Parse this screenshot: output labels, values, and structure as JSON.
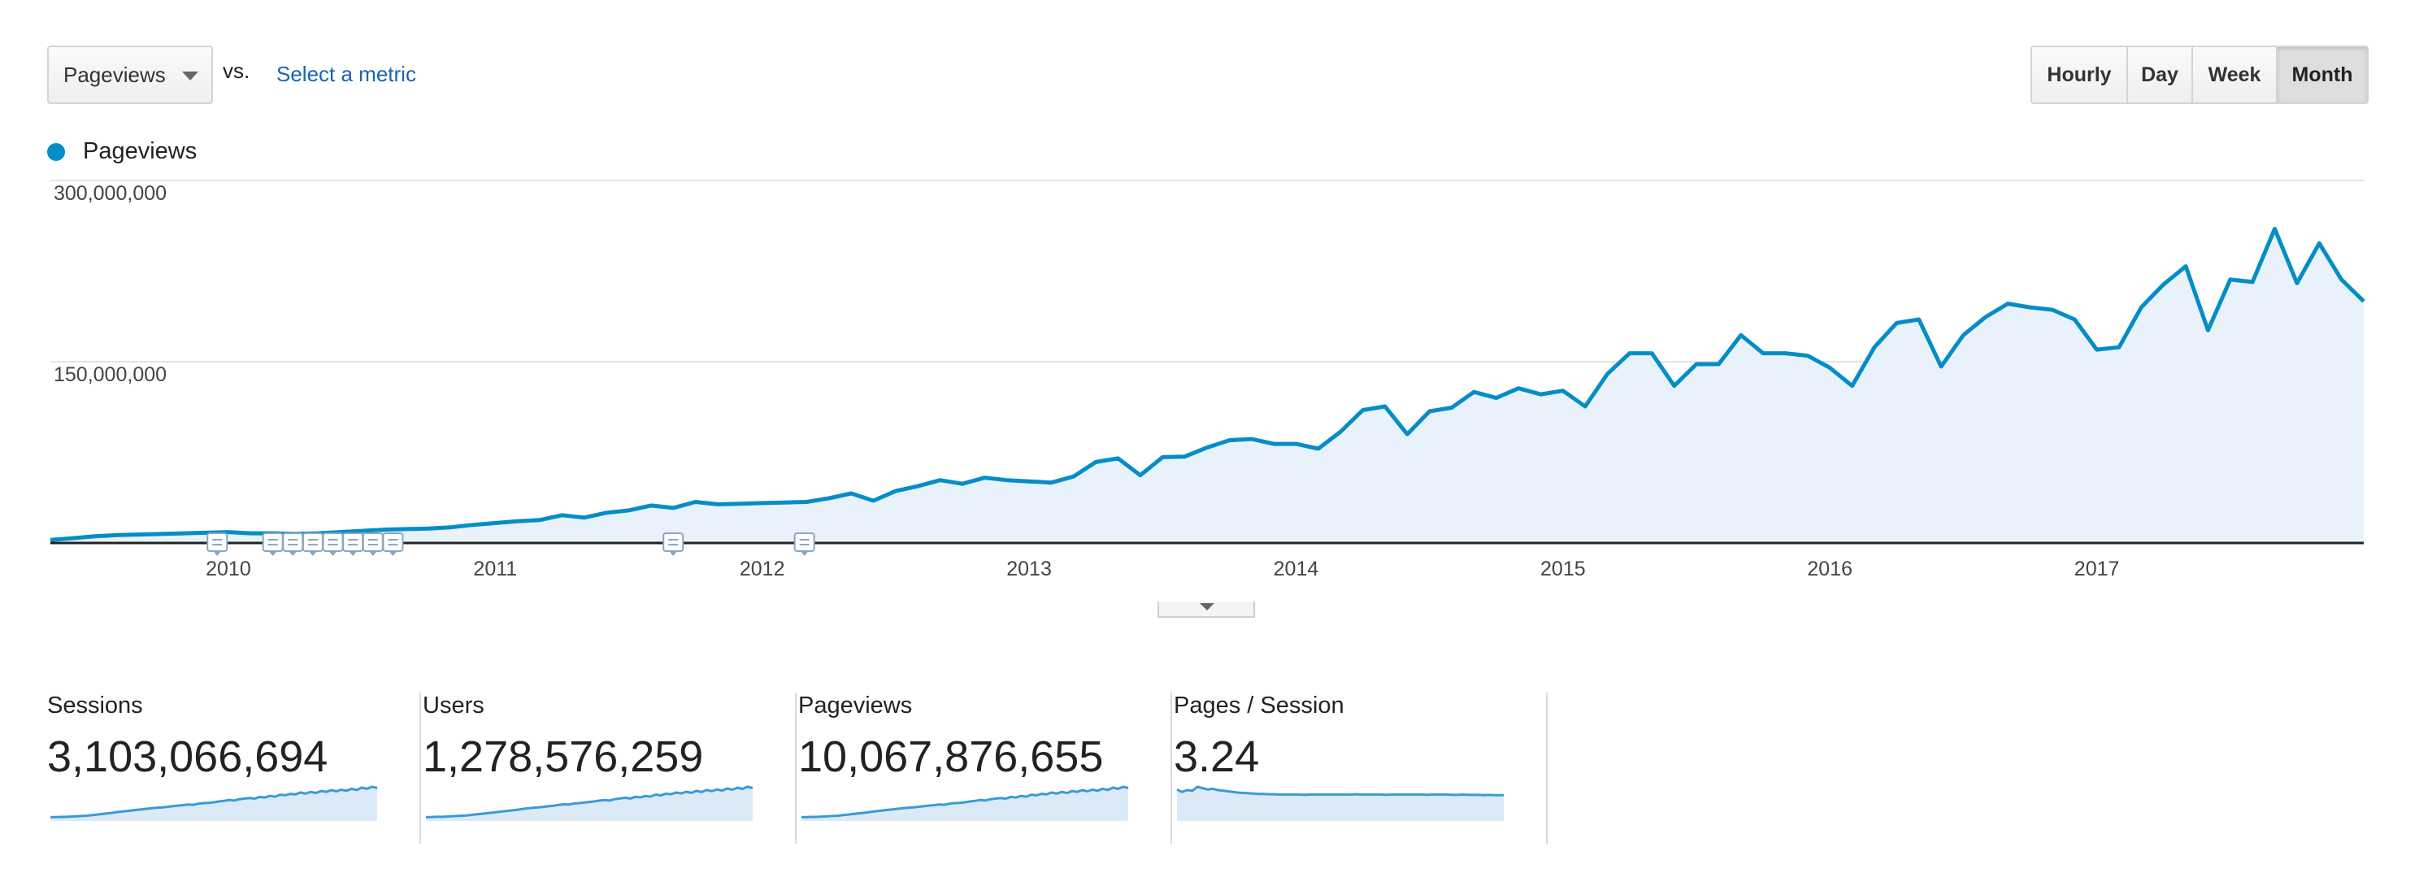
{
  "controls": {
    "metric_select": "Pageviews",
    "vs_label": "vs.",
    "select_metric_link": "Select a metric",
    "range_buttons": [
      {
        "label": "Hourly",
        "active": false
      },
      {
        "label": "Day",
        "active": false
      },
      {
        "label": "Week",
        "active": false
      },
      {
        "label": "Month",
        "active": true
      }
    ]
  },
  "legend": {
    "label": "Pageviews",
    "color": "#058dc7"
  },
  "chart_data": {
    "type": "area",
    "series": [
      {
        "name": "Pageviews",
        "color": "#058dc7"
      }
    ],
    "x_tick_labels": [
      "2010",
      "2011",
      "2012",
      "2013",
      "2014",
      "2015",
      "2016",
      "2017"
    ],
    "y_tick_labels": [
      "300,000,000",
      "150,000,000"
    ],
    "ylim": [
      0,
      300000000
    ],
    "grid": true,
    "values": [
      2500000,
      4000000,
      5500000,
      6500000,
      7000000,
      7500000,
      8000000,
      8500000,
      9000000,
      8000000,
      8000000,
      7500000,
      8000000,
      9000000,
      10000000,
      11000000,
      11500000,
      12000000,
      13000000,
      15000000,
      16500000,
      18000000,
      19000000,
      23000000,
      21000000,
      25000000,
      27000000,
      31000000,
      29000000,
      34000000,
      32000000,
      32500000,
      33000000,
      33500000,
      34000000,
      37000000,
      41000000,
      35000000,
      43000000,
      47000000,
      52000000,
      49000000,
      54000000,
      52000000,
      51000000,
      50000000,
      55000000,
      67000000,
      70000000,
      56000000,
      71000000,
      71500000,
      79000000,
      85000000,
      86000000,
      82000000,
      82000000,
      78000000,
      92000000,
      110000000,
      113000000,
      90000000,
      109000000,
      112000000,
      125000000,
      120000000,
      128000000,
      123000000,
      126000000,
      113000000,
      140000000,
      157000000,
      157000000,
      130000000,
      148000000,
      148000000,
      172000000,
      157000000,
      157000000,
      155000000,
      145000000,
      130000000,
      162000000,
      182000000,
      185000000,
      146000000,
      172000000,
      187000000,
      198000000,
      195000000,
      193000000,
      185000000,
      160000000,
      162000000,
      195000000,
      214000000,
      229000000,
      176000000,
      218000000,
      216000000,
      260000000,
      215000000,
      248000000,
      218000000,
      200000000
    ],
    "annotation_count": 10
  },
  "scorecards": [
    {
      "label": "Sessions",
      "value": "3,103,066,694",
      "spark": [
        2,
        2,
        3,
        3,
        4,
        5,
        6,
        7,
        9,
        11,
        13,
        15,
        17,
        20,
        22,
        24,
        26,
        28,
        30,
        32,
        34,
        36,
        37,
        39,
        41,
        43,
        45,
        47,
        46,
        50,
        52,
        53,
        55,
        58,
        60,
        63,
        61,
        66,
        68,
        70,
        68,
        74,
        72,
        78,
        75,
        82,
        80,
        85,
        83,
        90,
        86,
        92,
        88,
        95,
        92,
        98,
        94,
        100,
        96,
        103,
        99,
        107,
        103,
        110,
        106
      ]
    },
    {
      "label": "Users",
      "value": "1,278,576,259",
      "spark": [
        2,
        2,
        3,
        3,
        4,
        5,
        6,
        7,
        8,
        10,
        12,
        14,
        16,
        18,
        20,
        22,
        24,
        26,
        28,
        31,
        33,
        35,
        36,
        38,
        40,
        42,
        45,
        47,
        46,
        50,
        51,
        53,
        55,
        57,
        60,
        62,
        60,
        65,
        67,
        70,
        67,
        73,
        71,
        76,
        74,
        81,
        78,
        84,
        82,
        88,
        85,
        91,
        87,
        94,
        90,
        97,
        93,
        99,
        95,
        102,
        98,
        105,
        101,
        108,
        104
      ]
    },
    {
      "label": "Pageviews",
      "value": "10,067,876,655",
      "spark": [
        2,
        2,
        3,
        3,
        4,
        5,
        6,
        7,
        9,
        11,
        13,
        15,
        17,
        19,
        22,
        24,
        26,
        28,
        30,
        32,
        34,
        36,
        37,
        39,
        41,
        43,
        45,
        47,
        46,
        50,
        52,
        53,
        55,
        58,
        60,
        63,
        61,
        66,
        68,
        70,
        68,
        74,
        72,
        78,
        75,
        82,
        80,
        85,
        83,
        90,
        86,
        92,
        88,
        95,
        92,
        98,
        94,
        100,
        96,
        103,
        99,
        107,
        103,
        110,
        106
      ]
    },
    {
      "label": "Pages / Session",
      "value": "3.24",
      "spark": [
        88,
        80,
        86,
        84,
        96,
        92,
        88,
        90,
        86,
        84,
        82,
        80,
        78,
        77,
        76,
        75,
        74,
        74,
        73,
        73,
        72,
        72,
        72,
        72,
        72,
        71,
        72,
        72,
        72,
        72,
        72,
        72,
        72,
        72,
        72,
        73,
        72,
        72,
        72,
        72,
        72,
        71,
        72,
        72,
        72,
        72,
        72,
        72,
        72,
        71,
        72,
        72,
        72,
        72,
        71,
        71,
        72,
        71,
        71,
        71,
        70,
        71,
        70,
        70,
        70
      ]
    }
  ]
}
